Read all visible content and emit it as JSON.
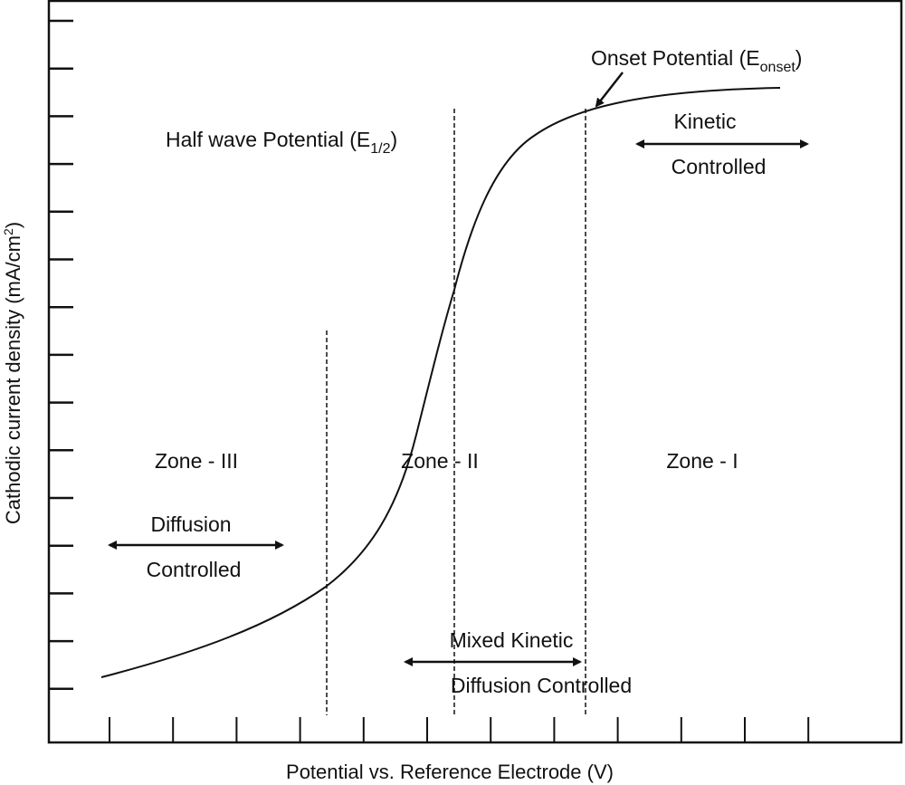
{
  "axes": {
    "xlabel": "Potential vs. Reference Electrode (V)",
    "ylabel_main": "Cathodic current density (mA/cm",
    "ylabel_sup": "2",
    "ylabel_end": ")"
  },
  "annotations": {
    "half_wave": {
      "text": "Half wave Potential (E",
      "sub": "1/2",
      "end": ")"
    },
    "onset": {
      "text": "Onset Potential (E",
      "sub": "onset",
      "end": ")"
    },
    "zone3": "Zone - III",
    "zone2": "Zone - II",
    "zone1": "Zone - I",
    "diffusion_top": "Diffusion",
    "diffusion_bottom": "Controlled",
    "kinetic_top": "Kinetic",
    "kinetic_bottom": "Controlled",
    "mixed_top": "Mixed Kinetic",
    "mixed_bottom": "Diffusion Controlled"
  },
  "colors": {
    "line": "#111111",
    "background": "#ffffff"
  }
}
